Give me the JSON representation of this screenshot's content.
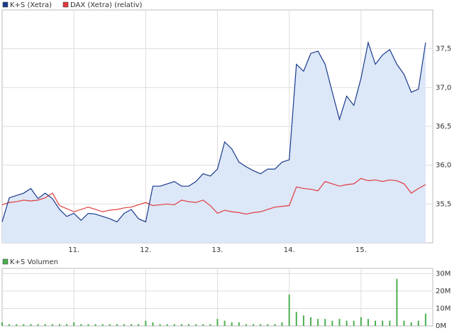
{
  "chart_data": [
    {
      "type": "line",
      "x": [
        10.0,
        10.1,
        10.2,
        10.3,
        10.4,
        10.5,
        10.6,
        10.7,
        10.8,
        10.9,
        11.0,
        11.1,
        11.2,
        11.3,
        11.4,
        11.5,
        11.6,
        11.7,
        11.8,
        11.9,
        12.0,
        12.1,
        12.2,
        12.3,
        12.4,
        12.5,
        12.6,
        12.7,
        12.8,
        12.9,
        13.0,
        13.1,
        13.2,
        13.3,
        13.4,
        13.5,
        13.6,
        13.7,
        13.8,
        13.9,
        14.0,
        14.1,
        14.2,
        14.3,
        14.4,
        14.5,
        14.6,
        14.7,
        14.8,
        14.9,
        15.0,
        15.1,
        15.2,
        15.3,
        15.4,
        15.5,
        15.6,
        15.7,
        15.8,
        15.9
      ],
      "series": [
        {
          "name": "K+S (Xetra)",
          "color": "#1a3b8c",
          "values": [
            35.27,
            35.58,
            35.61,
            35.64,
            35.7,
            35.57,
            35.64,
            35.57,
            35.43,
            35.34,
            35.38,
            35.29,
            35.38,
            35.37,
            35.34,
            35.31,
            35.27,
            35.38,
            35.43,
            35.31,
            35.27,
            35.73,
            35.73,
            35.76,
            35.79,
            35.73,
            35.73,
            35.79,
            35.89,
            35.86,
            35.95,
            36.3,
            36.21,
            36.04,
            35.98,
            35.93,
            35.89,
            35.95,
            35.95,
            36.04,
            36.07,
            37.3,
            37.21,
            37.44,
            37.47,
            37.3,
            36.94,
            36.59,
            36.89,
            36.77,
            37.12,
            37.58,
            37.3,
            37.42,
            37.49,
            37.3,
            37.17,
            36.94,
            36.98,
            37.58
          ]
        },
        {
          "name": "DAX (Xetra) (relativ)",
          "color": "#e03c3c",
          "values": [
            35.49,
            35.52,
            35.53,
            35.55,
            35.54,
            35.55,
            35.58,
            35.64,
            35.48,
            35.44,
            35.4,
            35.43,
            35.46,
            35.43,
            35.4,
            35.42,
            35.43,
            35.45,
            35.46,
            35.49,
            35.52,
            35.48,
            35.49,
            35.5,
            35.49,
            35.55,
            35.53,
            35.52,
            35.55,
            35.48,
            35.38,
            35.42,
            35.4,
            35.39,
            35.37,
            35.39,
            35.4,
            35.43,
            35.46,
            35.47,
            35.48,
            35.72,
            35.7,
            35.69,
            35.67,
            35.79,
            35.76,
            35.73,
            35.75,
            35.76,
            35.83,
            35.8,
            35.81,
            35.79,
            35.81,
            35.8,
            35.76,
            35.64,
            35.7,
            35.75
          ]
        }
      ],
      "xlim": [
        10,
        16
      ],
      "xticks": [
        {
          "value": 11,
          "label": "11."
        },
        {
          "value": 12,
          "label": "12."
        },
        {
          "value": 13,
          "label": "13."
        },
        {
          "value": 14,
          "label": "14."
        },
        {
          "value": 15,
          "label": "15."
        }
      ],
      "ylim": [
        35.0,
        38.0
      ],
      "yticks": [
        {
          "value": 35.5,
          "label": "35,5"
        },
        {
          "value": 36.0,
          "label": "36,0"
        },
        {
          "value": 36.5,
          "label": "36,5"
        },
        {
          "value": 37.0,
          "label": "37,0"
        },
        {
          "value": 37.5,
          "label": "37,5"
        }
      ],
      "grid": true
    },
    {
      "type": "bar",
      "x": [
        10.0,
        10.1,
        10.2,
        10.3,
        10.4,
        10.5,
        10.6,
        10.7,
        10.8,
        10.9,
        11.0,
        11.1,
        11.2,
        11.3,
        11.4,
        11.5,
        11.6,
        11.7,
        11.8,
        11.9,
        12.0,
        12.1,
        12.2,
        12.3,
        12.4,
        12.5,
        12.6,
        12.7,
        12.8,
        12.9,
        13.0,
        13.1,
        13.2,
        13.3,
        13.4,
        13.5,
        13.6,
        13.7,
        13.8,
        13.9,
        14.0,
        14.1,
        14.2,
        14.3,
        14.4,
        14.5,
        14.6,
        14.7,
        14.8,
        14.9,
        15.0,
        15.1,
        15.2,
        15.3,
        15.4,
        15.5,
        15.6,
        15.7,
        15.8,
        15.9
      ],
      "series": [
        {
          "name": "K+S Volumen",
          "color": "#4caf50",
          "values": [
            2000000,
            1000000,
            1000000,
            1000000,
            1000000,
            1000000,
            1000000,
            1000000,
            1000000,
            1000000,
            2000000,
            1000000,
            1000000,
            1000000,
            1000000,
            1000000,
            1000000,
            1000000,
            1000000,
            1000000,
            3000000,
            2000000,
            1000000,
            1000000,
            1000000,
            1000000,
            1000000,
            1000000,
            1000000,
            1000000,
            4000000,
            3000000,
            2000000,
            2000000,
            1000000,
            1000000,
            1000000,
            1000000,
            1000000,
            2000000,
            18000000,
            8000000,
            6000000,
            5000000,
            4000000,
            4000000,
            3000000,
            4000000,
            3000000,
            3000000,
            5000000,
            4000000,
            3000000,
            3000000,
            3000000,
            27000000,
            3000000,
            2000000,
            3000000,
            7000000
          ]
        }
      ],
      "xlim": [
        10,
        16
      ],
      "xticks": [
        11,
        12,
        13,
        14,
        15
      ],
      "ylim": [
        0,
        33000000
      ],
      "yticks": [
        {
          "value": 0,
          "label": "0M"
        },
        {
          "value": 10000000,
          "label": "10M"
        },
        {
          "value": 20000000,
          "label": "20M"
        },
        {
          "value": 30000000,
          "label": "30M"
        }
      ],
      "grid": true
    }
  ]
}
